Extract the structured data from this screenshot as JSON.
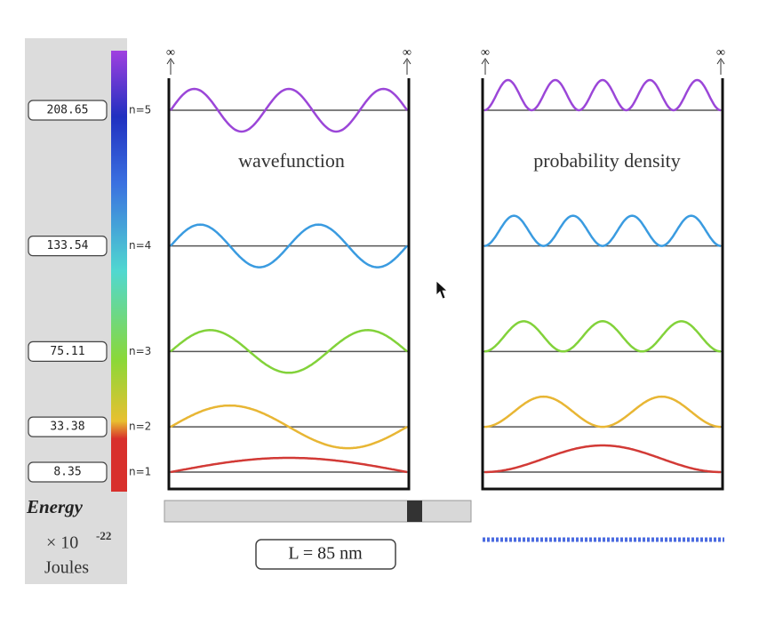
{
  "levels": [
    {
      "label": "n=1",
      "energy": "8.35",
      "color": "#d23a36"
    },
    {
      "label": "n=2",
      "energy": "33.38",
      "color": "#e8b634"
    },
    {
      "label": "n=3",
      "energy": "75.11",
      "color": "#82d23a"
    },
    {
      "label": "n=4",
      "energy": "133.54",
      "color": "#3a9be0"
    },
    {
      "label": "n=5",
      "energy": "208.65",
      "color": "#9b46d8"
    }
  ],
  "wavefunction_title": "wavefunction",
  "density_title": "probability density",
  "wall_labels": [
    "∞",
    "∞",
    "∞",
    "∞"
  ],
  "energy_label": "Energy",
  "unit_factor": "× 10",
  "unit_exponent": "-22",
  "unit_label": "Joules",
  "length_label": "L = 85 nm"
}
